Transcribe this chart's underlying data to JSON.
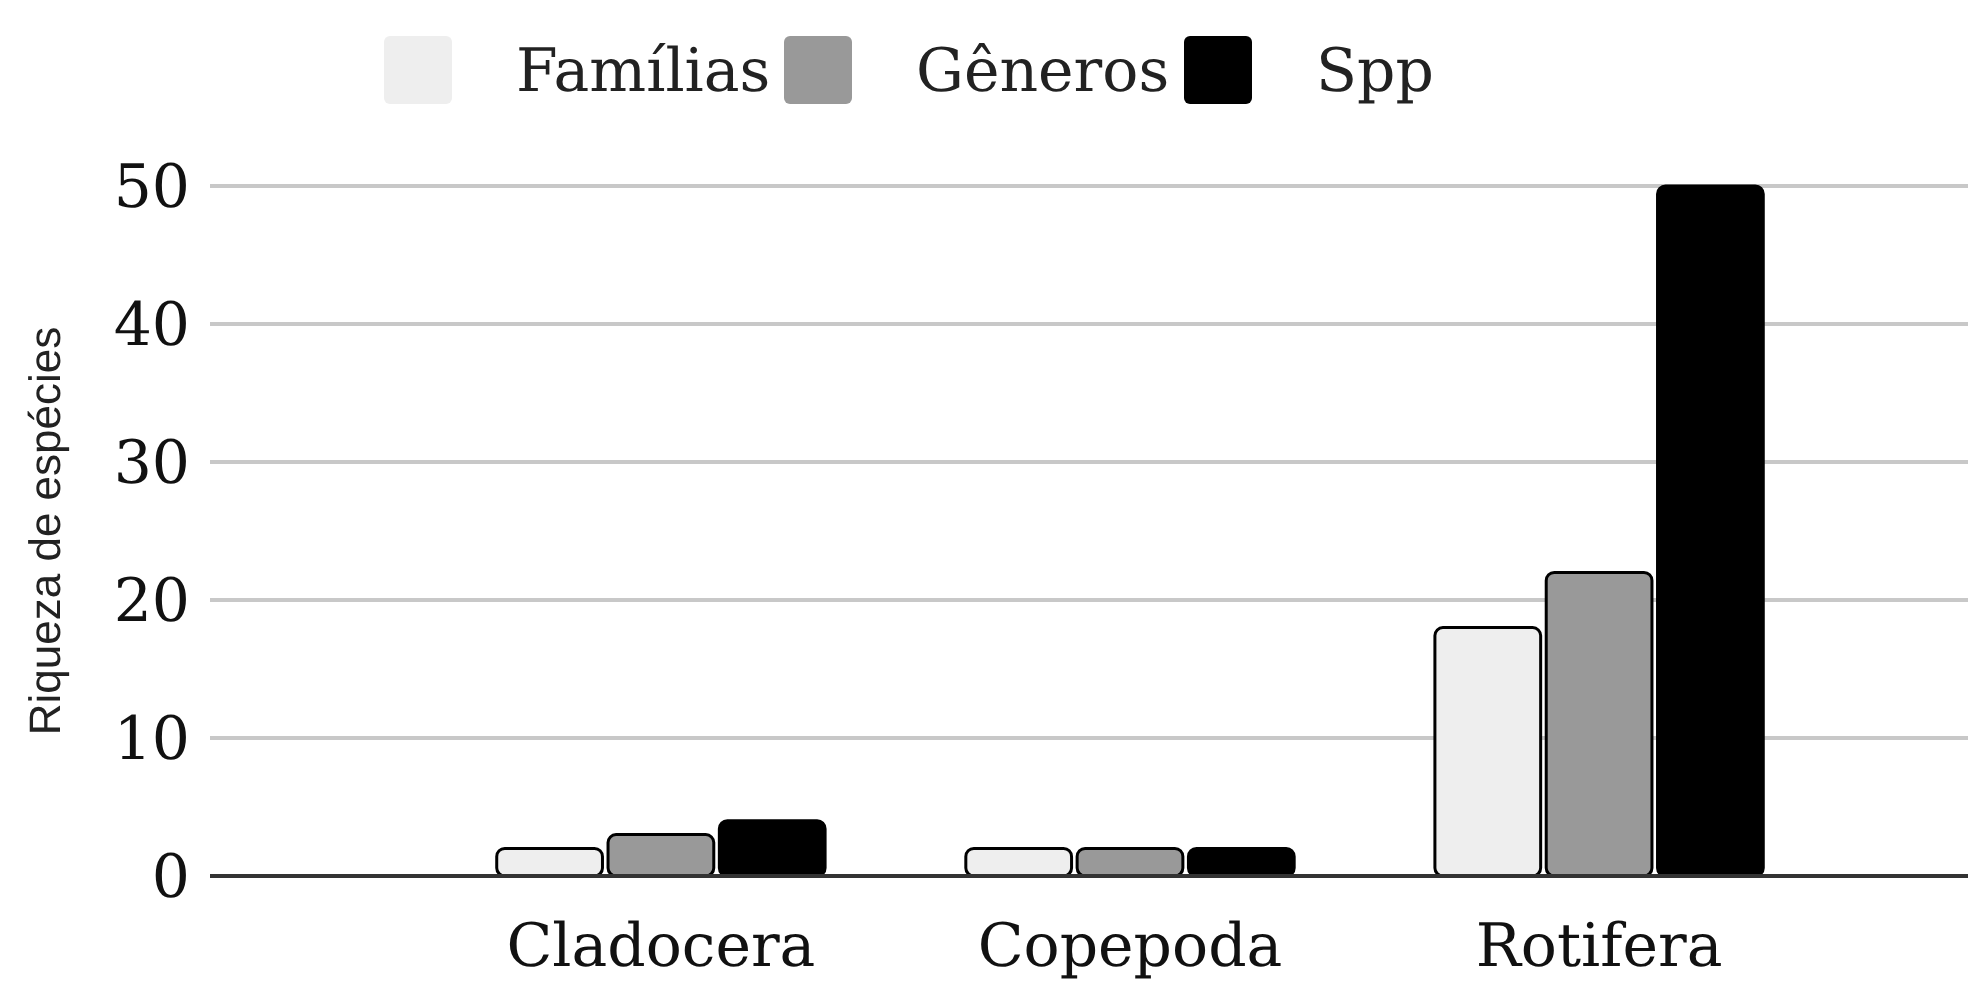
{
  "chart_data": {
    "type": "bar",
    "ylabel": "Riqueza de espécies",
    "categories": [
      "Cladocera",
      "Copepoda",
      "Rotifera"
    ],
    "series": [
      {
        "name": "Famílias",
        "color": "#eeeeee",
        "values": [
          2,
          2,
          18
        ]
      },
      {
        "name": "Gêneros",
        "color": "#999999",
        "values": [
          3,
          2,
          22
        ]
      },
      {
        "name": "Spp",
        "color": "#000000",
        "values": [
          4,
          2,
          50
        ]
      }
    ],
    "ylim": [
      0,
      50
    ],
    "yticks": [
      0,
      10,
      20,
      30,
      40,
      50
    ],
    "grid": "y",
    "legend": "top"
  }
}
